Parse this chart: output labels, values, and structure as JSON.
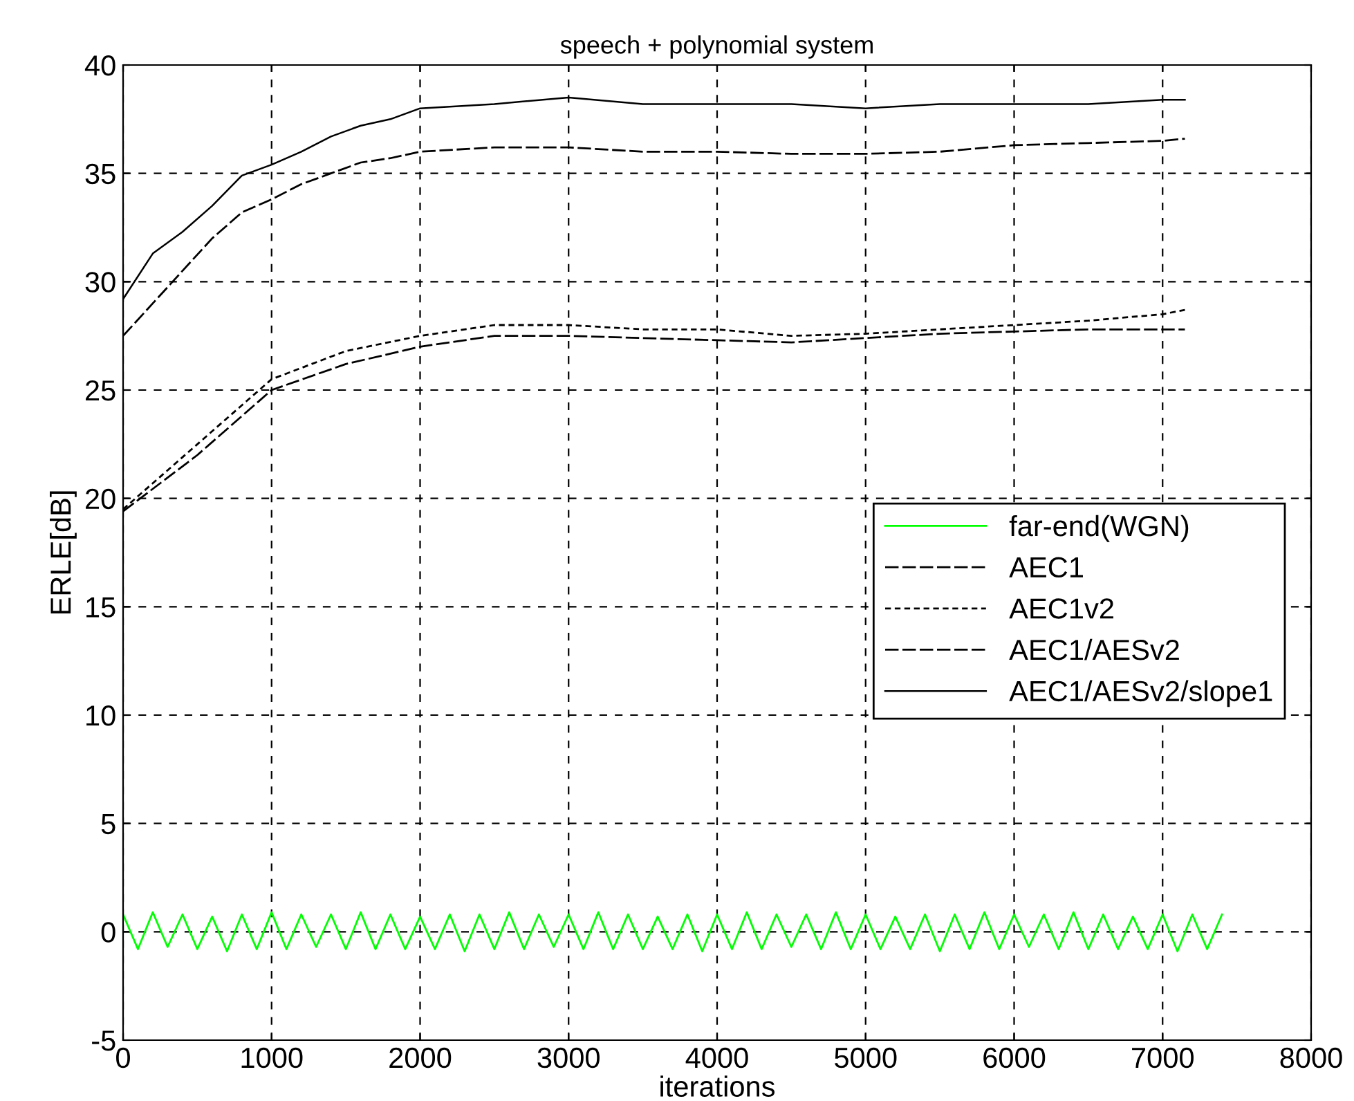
{
  "chart_data": {
    "type": "line",
    "title": "speech + polynomial system",
    "xlabel": "iterations",
    "ylabel": "ERLE[dB]",
    "xlim": [
      0,
      8000
    ],
    "xticks": [
      0,
      1000,
      2000,
      3000,
      4000,
      5000,
      6000,
      7000,
      8000
    ],
    "ylim": [
      -5,
      40
    ],
    "yticks": [
      -5,
      0,
      5,
      10,
      15,
      20,
      25,
      30,
      35,
      40
    ],
    "grid": true,
    "legend": "right",
    "series": [
      {
        "name": "far-end(WGN)",
        "color": "#00ff00",
        "line_style": "solid",
        "x": [
          0,
          100,
          200,
          300,
          400,
          500,
          600,
          700,
          800,
          900,
          1000,
          1100,
          1200,
          1300,
          1400,
          1500,
          1600,
          1700,
          1800,
          1900,
          2000,
          2100,
          2200,
          2300,
          2400,
          2500,
          2600,
          2700,
          2800,
          2900,
          3000,
          3100,
          3200,
          3300,
          3400,
          3500,
          3600,
          3700,
          3800,
          3900,
          4000,
          4100,
          4200,
          4300,
          4400,
          4500,
          4600,
          4700,
          4800,
          4900,
          5000,
          5100,
          5200,
          5300,
          5400,
          5500,
          5600,
          5700,
          5800,
          5900,
          6000,
          6100,
          6200,
          6300,
          6400,
          6500,
          6600,
          6700,
          6800,
          6900,
          7000,
          7100,
          7200,
          7300,
          7400
        ],
        "values": [
          0.8,
          -0.8,
          0.9,
          -0.7,
          0.8,
          -0.8,
          0.7,
          -0.9,
          0.8,
          -0.8,
          0.9,
          -0.8,
          0.8,
          -0.7,
          0.8,
          -0.8,
          0.9,
          -0.8,
          0.8,
          -0.8,
          0.7,
          -0.8,
          0.8,
          -0.9,
          0.8,
          -0.8,
          0.9,
          -0.8,
          0.8,
          -0.7,
          0.8,
          -0.8,
          0.9,
          -0.8,
          0.8,
          -0.8,
          0.7,
          -0.8,
          0.8,
          -0.9,
          0.8,
          -0.8,
          0.9,
          -0.8,
          0.8,
          -0.7,
          0.8,
          -0.8,
          0.9,
          -0.8,
          0.8,
          -0.8,
          0.7,
          -0.8,
          0.8,
          -0.9,
          0.8,
          -0.8,
          0.9,
          -0.8,
          0.8,
          -0.7,
          0.8,
          -0.8,
          0.9,
          -0.8,
          0.8,
          -0.8,
          0.7,
          -0.8,
          0.8,
          -0.9,
          0.8,
          -0.8,
          0.8
        ]
      },
      {
        "name": "AEC1",
        "color": "#000000",
        "line_style": "dashed",
        "x": [
          0,
          500,
          1000,
          1500,
          2000,
          2500,
          3000,
          3500,
          4000,
          4500,
          5000,
          5500,
          6000,
          6500,
          7000,
          7150
        ],
        "values": [
          19.4,
          22.0,
          25.0,
          26.2,
          27.0,
          27.5,
          27.5,
          27.4,
          27.3,
          27.2,
          27.4,
          27.6,
          27.7,
          27.8,
          27.8,
          27.8
        ]
      },
      {
        "name": "AEC1v2",
        "color": "#000000",
        "line_style": "dotted",
        "x": [
          0,
          500,
          1000,
          1500,
          2000,
          2500,
          3000,
          3500,
          4000,
          4500,
          5000,
          5500,
          6000,
          6500,
          7000,
          7150
        ],
        "values": [
          19.5,
          22.5,
          25.5,
          26.8,
          27.5,
          28.0,
          28.0,
          27.8,
          27.8,
          27.5,
          27.6,
          27.8,
          28.0,
          28.2,
          28.5,
          28.7
        ]
      },
      {
        "name": "AEC1/AESv2",
        "color": "#000000",
        "line_style": "dashed",
        "x": [
          0,
          200,
          400,
          600,
          800,
          1000,
          1200,
          1400,
          1600,
          1800,
          2000,
          2500,
          3000,
          3500,
          4000,
          4500,
          5000,
          5500,
          6000,
          6500,
          7000,
          7150
        ],
        "values": [
          27.5,
          29.0,
          30.5,
          32.0,
          33.2,
          33.8,
          34.5,
          35.0,
          35.5,
          35.7,
          36.0,
          36.2,
          36.2,
          36.0,
          36.0,
          35.9,
          35.9,
          36.0,
          36.3,
          36.4,
          36.5,
          36.6
        ]
      },
      {
        "name": "AEC1/AESv2/slope1",
        "color": "#000000",
        "line_style": "solid",
        "x": [
          0,
          200,
          400,
          600,
          800,
          1000,
          1200,
          1400,
          1600,
          1800,
          2000,
          2500,
          3000,
          3500,
          4000,
          4500,
          5000,
          5500,
          6000,
          6500,
          7000,
          7150
        ],
        "values": [
          29.2,
          31.3,
          32.3,
          33.5,
          34.9,
          35.4,
          36.0,
          36.7,
          37.2,
          37.5,
          38.0,
          38.2,
          38.5,
          38.2,
          38.2,
          38.2,
          38.0,
          38.2,
          38.2,
          38.2,
          38.4,
          38.4
        ]
      }
    ]
  }
}
